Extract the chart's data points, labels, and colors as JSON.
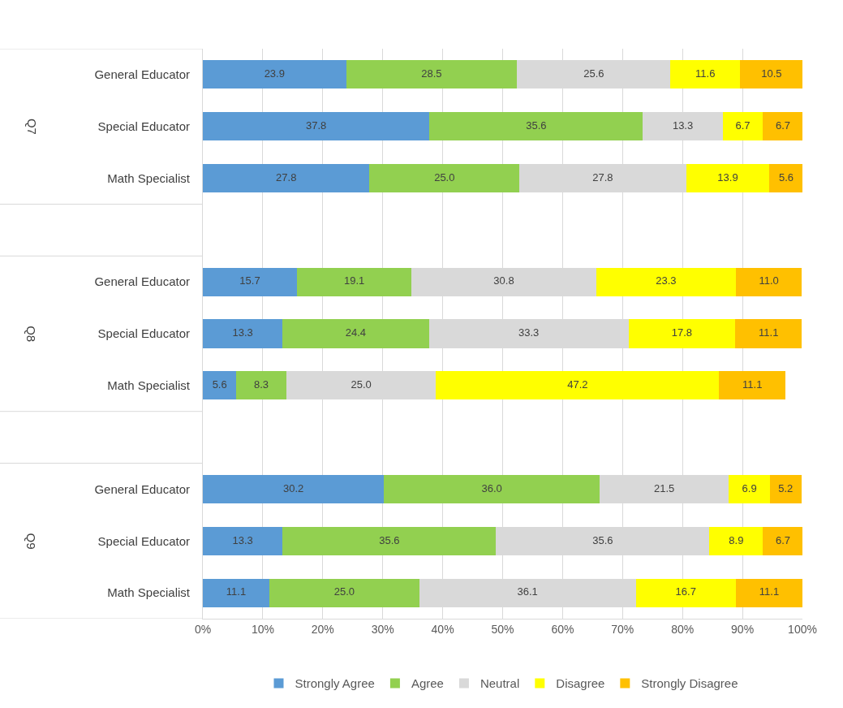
{
  "chart_data": {
    "type": "bar",
    "orientation": "horizontal",
    "stacked": true,
    "categories": [
      "General Educator",
      "Special Educator",
      "Math Specialist",
      null,
      "General Educator",
      "Special Educator",
      "Math Specialist",
      null,
      "General Educator",
      "Special Educator",
      "Math Specialist"
    ],
    "series": [
      {
        "name": "Strongly Agree",
        "color": "#5b9bd5",
        "values": [
          23.9,
          37.8,
          27.8,
          null,
          15.7,
          13.3,
          5.6,
          null,
          30.2,
          13.3,
          11.1
        ],
        "value_labels": [
          "23.9",
          "37.8",
          "27.8",
          null,
          "15.7",
          "13.3",
          "5.6",
          null,
          "30.2",
          "13.3",
          "11.1"
        ]
      },
      {
        "name": "Agree",
        "color": "#92d050",
        "values": [
          28.5,
          35.6,
          25.0,
          null,
          19.1,
          24.4,
          8.3,
          null,
          36.0,
          35.6,
          25.0
        ],
        "value_labels": [
          "28.5",
          "35.6",
          "25.0",
          null,
          "19.1",
          "24.4",
          "8.3",
          null,
          "36.0",
          "35.6",
          "25.0"
        ]
      },
      {
        "name": "Neutral",
        "color": "#d9d9d9",
        "values": [
          25.6,
          13.3,
          27.8,
          null,
          30.8,
          33.3,
          25.0,
          null,
          21.5,
          35.6,
          36.1
        ],
        "value_labels": [
          "25.6",
          "13.3",
          "27.8",
          null,
          "30.8",
          "33.3",
          "25.0",
          null,
          "21.5",
          "35.6",
          "36.1"
        ]
      },
      {
        "name": "Disagree",
        "color": "#ffff00",
        "values": [
          11.6,
          6.7,
          13.9,
          null,
          23.3,
          17.8,
          47.2,
          null,
          6.9,
          8.9,
          16.7
        ],
        "value_labels": [
          "11.6",
          "6.7",
          "13.9",
          null,
          "23.3",
          "17.8",
          "47.2",
          null,
          "6.9",
          "8.9",
          "16.7"
        ]
      },
      {
        "name": "Strongly Disagree",
        "color": "#ffc000",
        "values": [
          10.5,
          6.7,
          5.6,
          null,
          11.0,
          11.1,
          11.1,
          null,
          5.2,
          6.7,
          11.1
        ],
        "value_labels": [
          "10.5",
          "6.7",
          "5.6",
          null,
          "11.0",
          "11.1",
          "11.1",
          null,
          "5.2",
          "6.7",
          "11.1"
        ]
      }
    ],
    "annotations": [
      "Q7",
      "Q8",
      "Q9"
    ],
    "xlim": [
      0,
      100
    ],
    "xticks": [
      {
        "value": 0,
        "label": "0%"
      },
      {
        "value": 10,
        "label": "10%"
      },
      {
        "value": 20,
        "label": "20%"
      },
      {
        "value": 30,
        "label": "30%"
      },
      {
        "value": 40,
        "label": "40%"
      },
      {
        "value": 50,
        "label": "50%"
      },
      {
        "value": 60,
        "label": "60%"
      },
      {
        "value": 70,
        "label": "70%"
      },
      {
        "value": 80,
        "label": "80%"
      },
      {
        "value": 90,
        "label": "90%"
      },
      {
        "value": 100,
        "label": "100%"
      }
    ],
    "grid": "x",
    "legend": "bottom"
  }
}
